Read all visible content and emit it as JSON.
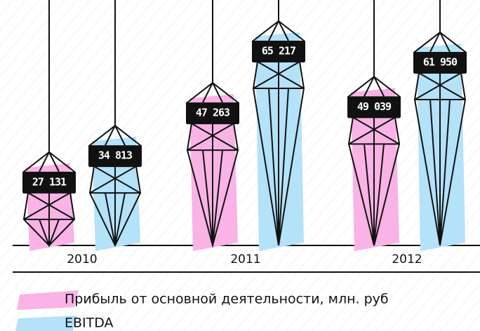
{
  "chart_data": {
    "type": "bar",
    "categories": [
      "2010",
      "2011",
      "2012"
    ],
    "series": [
      {
        "name": "Прибыль от основной деятельности, млн. руб",
        "color": "#f9b3e6",
        "values": [
          27131,
          47263,
          49039
        ],
        "value_labels": [
          "27 131",
          "47 263",
          "49 039"
        ]
      },
      {
        "name": "EBITDA",
        "color": "#b3e2f9",
        "values": [
          34813,
          65217,
          61950
        ],
        "value_labels": [
          "34 813",
          "65 217",
          "61 950"
        ]
      }
    ]
  }
}
